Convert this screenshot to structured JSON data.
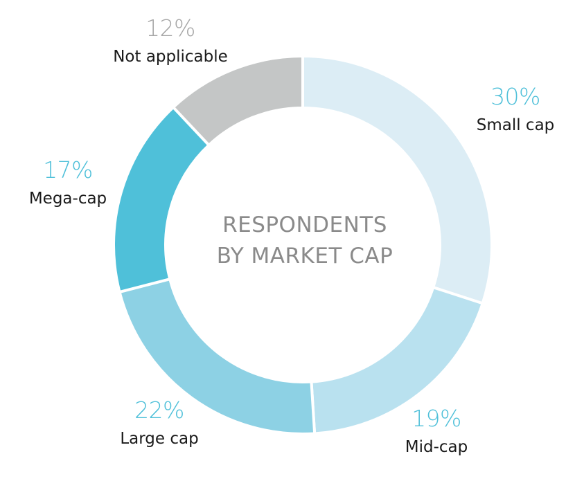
{
  "chart_data": {
    "type": "pie",
    "variant": "donut",
    "title": "RESPONDENTS BY MARKET CAP",
    "title_lines": [
      "RESPONDENTS",
      "BY MARKET CAP"
    ],
    "slices": [
      {
        "label": "Small cap",
        "value": 30,
        "value_label": "30%",
        "color": "#dcedf5"
      },
      {
        "label": "Mid-cap",
        "value": 19,
        "value_label": "19%",
        "color": "#b9e1ef"
      },
      {
        "label": "Large cap",
        "value": 22,
        "value_label": "22%",
        "color": "#8dd1e4"
      },
      {
        "label": "Mega-cap",
        "value": 17,
        "value_label": "17%",
        "color": "#4fc0d9"
      },
      {
        "label": "Not applicable",
        "value": 12,
        "value_label": "12%",
        "color": "#c4c6c6"
      }
    ],
    "percent_label_color": "#4fc0d9",
    "percent_label_color_na": "#a6a6a6",
    "label_color": "#1a1a1a",
    "center_text_color": "#8a8a8a"
  }
}
